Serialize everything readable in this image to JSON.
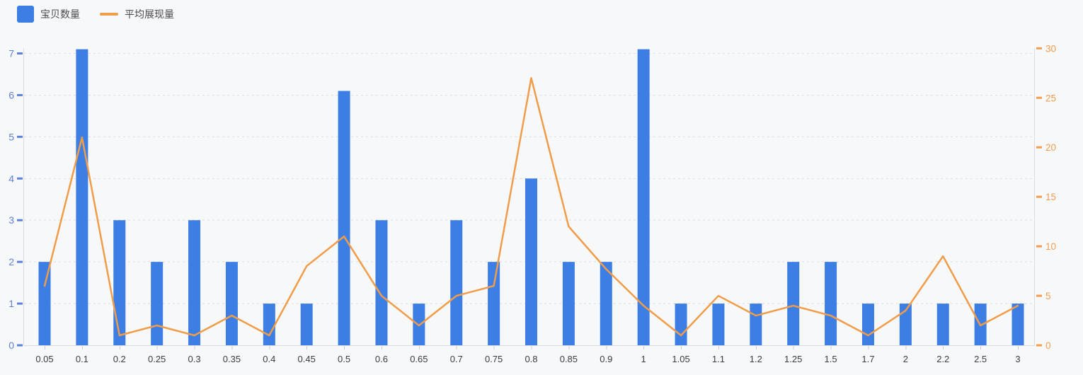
{
  "legend": {
    "items": [
      {
        "label": "宝贝数量",
        "marker": "bar-swatch"
      },
      {
        "label": "平均展现量",
        "marker": "line-swatch"
      }
    ]
  },
  "chart_data": {
    "type": "combo",
    "categories": [
      "0.05",
      "0.1",
      "0.2",
      "0.25",
      "0.3",
      "0.35",
      "0.4",
      "0.45",
      "0.5",
      "0.6",
      "0.65",
      "0.7",
      "0.75",
      "0.8",
      "0.85",
      "0.9",
      "1",
      "1.05",
      "1.1",
      "1.2",
      "1.25",
      "1.5",
      "1.7",
      "2",
      "2.2",
      "2.5",
      "3"
    ],
    "series": [
      {
        "name": "宝贝数量",
        "type": "bar",
        "y_axis": "left",
        "color": "#3D7EE4",
        "values": [
          2,
          7.1,
          3,
          2,
          3,
          2,
          1,
          1,
          6.1,
          3,
          1,
          3,
          2,
          4,
          2,
          2,
          7.1,
          1,
          1,
          1,
          2,
          2,
          1,
          1,
          1,
          1,
          1
        ]
      },
      {
        "name": "平均展现量",
        "type": "line",
        "y_axis": "right",
        "color": "#F09C49",
        "values": [
          6,
          21,
          1,
          2,
          1,
          3,
          1,
          8,
          11,
          5,
          2,
          5,
          6,
          27,
          12,
          7.7,
          4,
          1,
          5,
          3,
          4,
          3,
          1,
          3.5,
          9,
          2,
          4
        ]
      }
    ],
    "left_axis": {
      "min": 0,
      "max": 7,
      "interval": 1,
      "tick_labels": [
        "0",
        "1",
        "2",
        "3",
        "4",
        "5",
        "6",
        "7"
      ],
      "label_color": "#5E82D8"
    },
    "right_axis": {
      "min": 0,
      "max": 30,
      "interval": 5,
      "tick_labels": [
        "0",
        "5",
        "10",
        "15",
        "20",
        "25",
        "30"
      ],
      "label_color": "#F29C4E"
    },
    "x_axis": {
      "label_color": "#3C3C3C",
      "tick_color": "#CCCCCC"
    },
    "grid": {
      "show": true,
      "line_color": "#DDDDDD",
      "axis_line_color": "#DCDCDC",
      "style": "dashed"
    },
    "legend_position": "top-left",
    "background": "#F7F8FA",
    "title": "",
    "xlabel": "",
    "ylabel": ""
  }
}
